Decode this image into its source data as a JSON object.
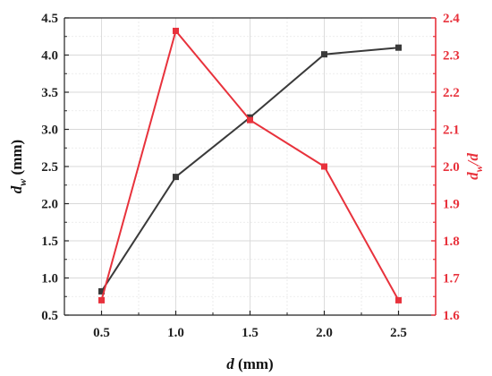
{
  "chart_data": {
    "type": "line",
    "x": [
      0.5,
      1.0,
      1.5,
      2.0,
      2.5
    ],
    "x_tick_labels": [
      "0.5",
      "1.0",
      "1.5",
      "2.0",
      "2.5"
    ],
    "xlim": [
      0.25,
      2.75
    ],
    "xlabel": {
      "var": "d",
      "unit": " (mm)"
    },
    "ylabel_left": {
      "var": "d",
      "sub": "w",
      "unit": " (mm)"
    },
    "ylabel_right": {
      "var": "d",
      "sub": "w",
      "tail": "/d"
    },
    "ylim_left": [
      0.5,
      4.5
    ],
    "ylim_right": [
      1.6,
      2.4
    ],
    "y_left_tick_labels": [
      "0.5",
      "1.0",
      "1.5",
      "2.0",
      "2.5",
      "3.0",
      "3.5",
      "4.0",
      "4.5"
    ],
    "y_right_tick_labels": [
      "1.6",
      "1.7",
      "1.8",
      "1.9",
      "2.0",
      "2.1",
      "2.2",
      "2.3",
      "2.4"
    ],
    "grid": true,
    "series": [
      {
        "axis": "left",
        "color": "#3a3a3a",
        "marker": "square",
        "values": [
          0.82,
          2.36,
          3.16,
          4.01,
          4.1
        ]
      },
      {
        "axis": "right",
        "color": "#e8323c",
        "marker": "square",
        "values": [
          1.64,
          2.365,
          2.125,
          2.0,
          1.64
        ]
      }
    ]
  }
}
